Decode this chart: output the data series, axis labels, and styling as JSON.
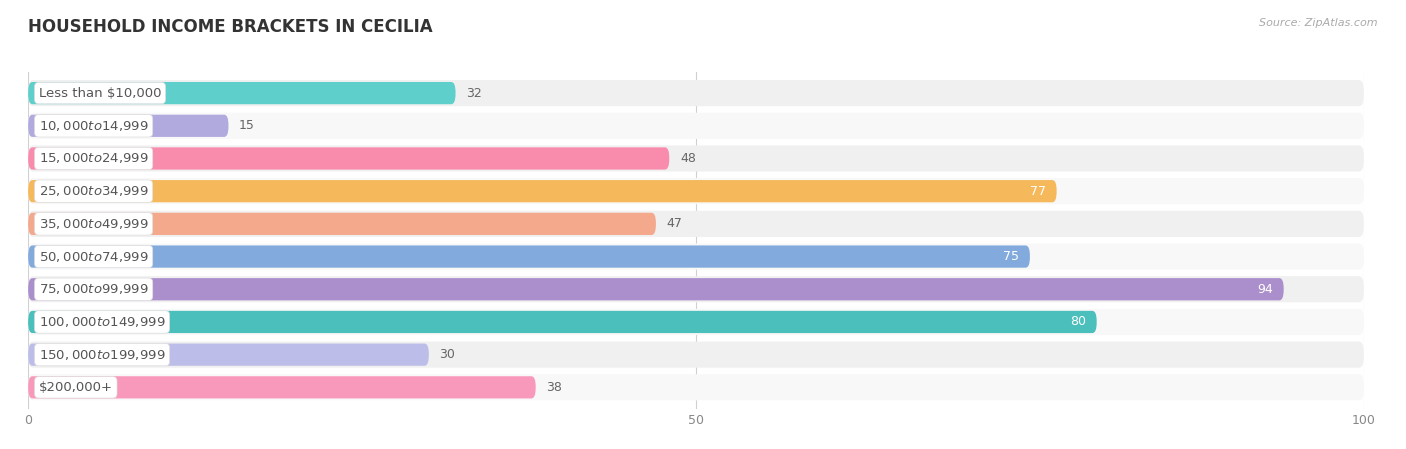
{
  "title": "HOUSEHOLD INCOME BRACKETS IN CECILIA",
  "source": "Source: ZipAtlas.com",
  "categories": [
    "Less than $10,000",
    "$10,000 to $14,999",
    "$15,000 to $24,999",
    "$25,000 to $34,999",
    "$35,000 to $49,999",
    "$50,000 to $74,999",
    "$75,000 to $99,999",
    "$100,000 to $149,999",
    "$150,000 to $199,999",
    "$200,000+"
  ],
  "values": [
    32,
    15,
    48,
    77,
    47,
    75,
    94,
    80,
    30,
    38
  ],
  "bar_colors": [
    "#5ECFCA",
    "#B0AADF",
    "#F98BAD",
    "#F5B85A",
    "#F4A88C",
    "#82AADC",
    "#AB8FCC",
    "#4BBFBB",
    "#BCBDE8",
    "#F899BB"
  ],
  "label_colors_white": [
    false,
    false,
    false,
    true,
    false,
    true,
    true,
    true,
    false,
    false
  ],
  "xlim": [
    0,
    100
  ],
  "xticks": [
    0,
    50,
    100
  ],
  "background_color": "#ffffff",
  "row_bg_even": "#f0f0f0",
  "row_bg_odd": "#f8f8f8",
  "title_fontsize": 12,
  "label_fontsize": 9.5,
  "value_fontsize": 9
}
